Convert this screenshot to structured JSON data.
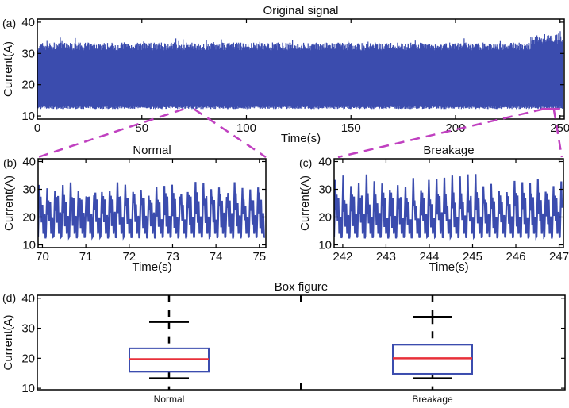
{
  "chart_data": [
    {
      "panel_label": "(a)",
      "type": "line",
      "title": "Original signal",
      "xlabel": "Time(s)",
      "ylabel": "Current(A)",
      "xlim": [
        0,
        252
      ],
      "ylim": [
        9,
        41
      ],
      "xticks": [
        "0",
        "50",
        "100",
        "150",
        "200",
        "250"
      ],
      "yticks": [
        "10",
        "20",
        "30",
        "40"
      ],
      "signal_envelope": {
        "min": 12,
        "max": 37
      },
      "color": "#3b4cae",
      "zoom_regions": [
        [
          70,
          75
        ],
        [
          242,
          247
        ]
      ],
      "zoom_line_color": "#c040c0"
    },
    {
      "panel_label": "(b)",
      "type": "line",
      "title": "Normal",
      "xlabel": "Time(s)",
      "ylabel": "Current(A)",
      "xlim": [
        69.9,
        75.15
      ],
      "ylim": [
        9,
        41
      ],
      "xticks": [
        "70",
        "71",
        "72",
        "73",
        "74",
        "75"
      ],
      "yticks": [
        "10",
        "20",
        "30",
        "40"
      ],
      "signal_envelope": {
        "min": 12,
        "max": 34
      },
      "color": "#3b4cae"
    },
    {
      "panel_label": "(c)",
      "type": "line",
      "title": "Breakage",
      "xlabel": "Time(s)",
      "ylabel": "Current(A)",
      "xlim": [
        241.8,
        247.1
      ],
      "ylim": [
        9,
        41
      ],
      "xticks": [
        "242",
        "243",
        "244",
        "245",
        "246",
        "247"
      ],
      "yticks": [
        "10",
        "20",
        "30",
        "40"
      ],
      "signal_envelope": {
        "min": 12,
        "max": 36
      },
      "color": "#3b4cae"
    },
    {
      "panel_label": "(d)",
      "type": "box",
      "title": "Box figure",
      "ylabel": "Current(A)",
      "ylim": [
        9.5,
        41
      ],
      "yticks": [
        "10",
        "20",
        "30",
        "40"
      ],
      "categories": [
        "Normal",
        "Breakage"
      ],
      "boxes": [
        {
          "name": "Normal",
          "whisker_low": 13.3,
          "q1": 15.5,
          "median": 19.7,
          "q3": 23.3,
          "whisker_high": 32.1
        },
        {
          "name": "Breakage",
          "whisker_low": 13.3,
          "q1": 14.8,
          "median": 20.0,
          "q3": 24.5,
          "whisker_high": 33.8
        }
      ],
      "box_color": "#3b4cae",
      "median_color": "#e8303a"
    }
  ]
}
